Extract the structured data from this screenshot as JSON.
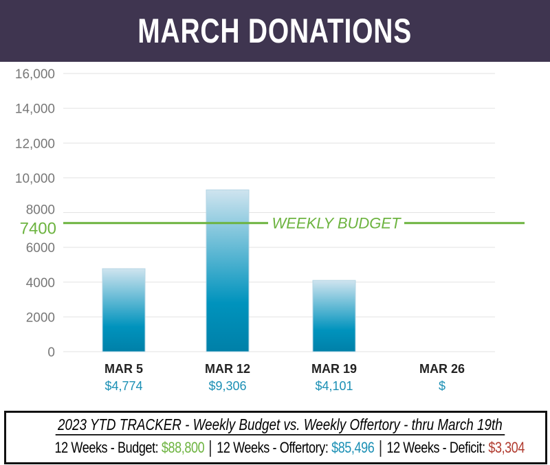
{
  "chart_data": {
    "type": "bar",
    "title": "MARCH DONATIONS",
    "categories": [
      "MAR 5",
      "MAR 12",
      "MAR 19",
      "MAR 26"
    ],
    "values": [
      4774,
      9306,
      4101,
      null
    ],
    "value_labels": [
      "$4,774",
      "$9,306",
      "$4,101",
      "$"
    ],
    "ylim": [
      0,
      16000
    ],
    "yticks": [
      0,
      2000,
      4000,
      6000,
      8000,
      10000,
      12000,
      14000,
      16000
    ],
    "ytick_labels": [
      "0",
      "2000",
      "4000",
      "6000",
      "8000",
      "10,000",
      "12,000",
      "14,000",
      "16,000"
    ],
    "grid": true,
    "reference_line": {
      "value": 7400,
      "label": "WEEKLY BUDGET",
      "value_label": "7400",
      "color": "#6cb33f"
    },
    "bar_color": "#0088b0"
  },
  "tracker": {
    "title": "2023 YTD TRACKER  -  Weekly Budget  vs. Weekly Offertory  -  thru March 19th",
    "budget_label": "12 Weeks - Budget:",
    "budget_value": "$88,800",
    "offertory_label": "12 Weeks - Offertory:",
    "offertory_value": "$85,496",
    "deficit_label": "12 Weeks - Deficit:",
    "deficit_value": "$3,304"
  }
}
